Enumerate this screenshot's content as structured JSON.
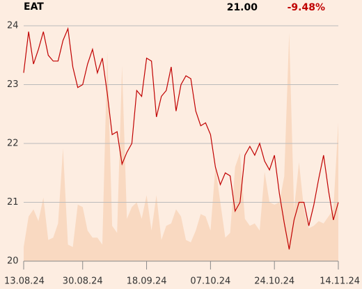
{
  "chart_data": {
    "type": "line",
    "title": "EAT",
    "last_price": "21.00",
    "change": "-9.48%",
    "categories": [
      "13.08.24",
      null,
      null,
      null,
      null,
      null,
      null,
      null,
      null,
      null,
      null,
      null,
      "30.08.24",
      null,
      null,
      null,
      null,
      null,
      null,
      null,
      null,
      null,
      null,
      null,
      null,
      "18.09.24",
      null,
      null,
      null,
      null,
      null,
      null,
      null,
      null,
      null,
      null,
      null,
      null,
      "07.10.24",
      null,
      null,
      null,
      null,
      null,
      null,
      null,
      null,
      null,
      null,
      null,
      null,
      "24.10.24",
      null,
      null,
      null,
      null,
      null,
      null,
      null,
      null,
      null,
      null,
      null,
      null,
      "14.11.24"
    ],
    "values": [
      23.2,
      23.9,
      23.35,
      23.6,
      23.9,
      23.5,
      23.4,
      23.4,
      23.75,
      23.95,
      23.3,
      22.95,
      23.0,
      23.35,
      23.6,
      23.2,
      23.45,
      22.85,
      22.15,
      22.2,
      21.65,
      21.85,
      22.0,
      22.9,
      22.8,
      23.45,
      23.4,
      22.45,
      22.8,
      22.9,
      23.3,
      22.55,
      23.0,
      23.15,
      23.1,
      22.55,
      22.3,
      22.35,
      22.15,
      21.6,
      21.3,
      21.5,
      21.45,
      20.85,
      21.0,
      21.8,
      21.95,
      21.8,
      22.0,
      21.7,
      21.55,
      21.8,
      21.15,
      20.65,
      20.2,
      20.7,
      21.0,
      21.0,
      20.6,
      20.95,
      21.4,
      21.8,
      21.2,
      20.7,
      21.0
    ],
    "color": "#c00000",
    "volume": {
      "values": [
        6,
        19,
        22,
        17,
        27,
        9,
        10,
        16,
        48,
        7,
        6,
        24,
        23,
        13,
        10,
        10,
        7,
        89,
        15,
        12,
        83,
        18,
        23,
        25,
        18,
        28,
        13,
        28,
        9,
        15,
        16,
        22,
        19,
        9,
        8,
        13,
        20,
        19,
        13,
        40,
        25,
        10,
        12,
        40,
        46,
        18,
        15,
        16,
        13,
        38,
        25,
        24,
        25,
        36,
        97,
        22,
        42,
        22,
        14,
        15,
        17,
        16,
        19,
        22,
        59
      ],
      "color": "#f9d9c1",
      "ylim": [
        0,
        100
      ]
    },
    "ylim": [
      20,
      24
    ],
    "yticks": [
      20,
      21,
      22,
      23,
      24
    ],
    "grid": true
  }
}
